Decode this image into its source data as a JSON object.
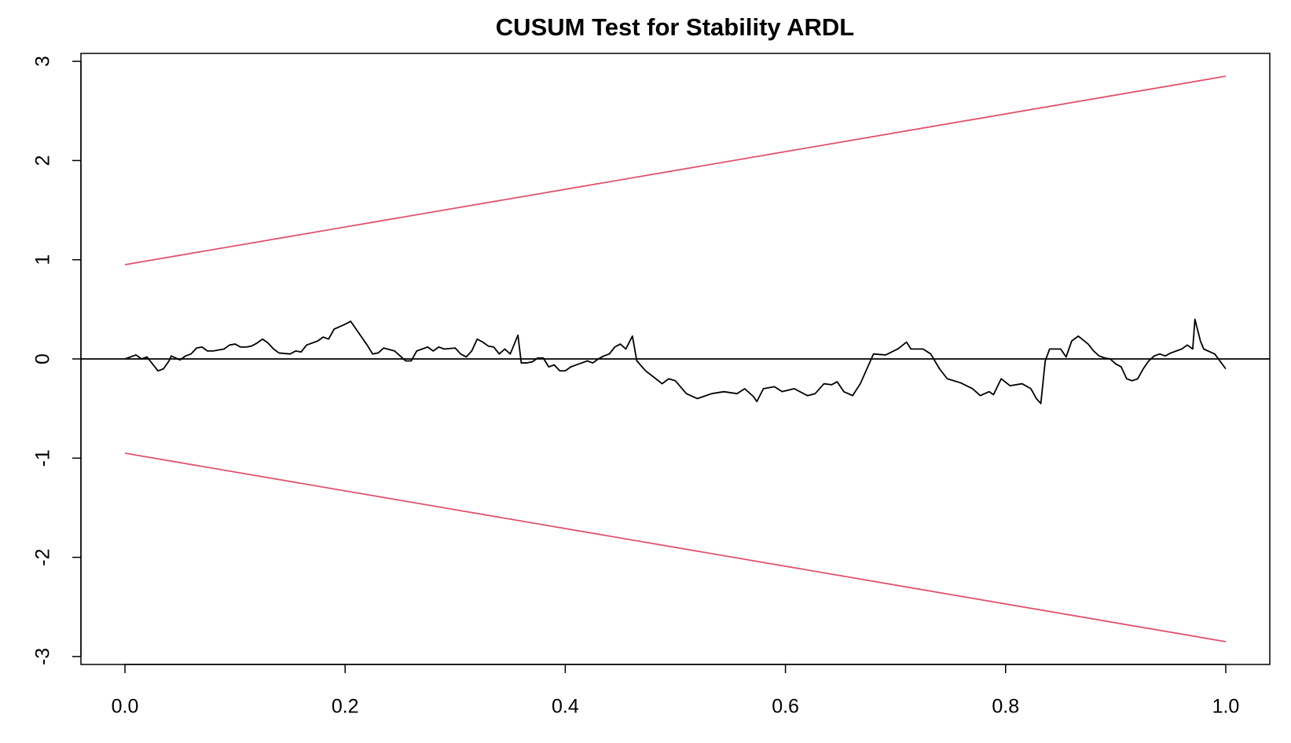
{
  "chart_data": {
    "type": "line",
    "title": "CUSUM Test for Stability ARDL",
    "xlim": [
      -0.04,
      1.04
    ],
    "ylim": [
      -3.08,
      3.08
    ],
    "xticks": [
      {
        "value": 0,
        "label": "0.0"
      },
      0.2,
      0.4,
      0.6,
      0.8,
      {
        "value": 1,
        "label": "1.0"
      }
    ],
    "yticks": [
      -3,
      -2,
      -1,
      0,
      1,
      2,
      3
    ],
    "hline": 0,
    "hline_color": "#000000",
    "series": [
      {
        "color": "#000000",
        "x": [
          0,
          0.01,
          0.015,
          0.02,
          0.03,
          0.035,
          0.04,
          0.042,
          0.05,
          0.055,
          0.06,
          0.065,
          0.07,
          0.075,
          0.08,
          0.09,
          0.095,
          0.1,
          0.105,
          0.11,
          0.115,
          0.12,
          0.125,
          0.13,
          0.135,
          0.14,
          0.15,
          0.155,
          0.16,
          0.165,
          0.175,
          0.18,
          0.185,
          0.19,
          0.2,
          0.205,
          0.21,
          0.215,
          0.22,
          0.225,
          0.23,
          0.235,
          0.245,
          0.25,
          0.255,
          0.26,
          0.265,
          0.27,
          0.275,
          0.28,
          0.285,
          0.29,
          0.3,
          0.305,
          0.31,
          0.315,
          0.32,
          0.325,
          0.33,
          0.335,
          0.34,
          0.345,
          0.35,
          0.357,
          0.36,
          0.365,
          0.37,
          0.375,
          0.38,
          0.385,
          0.39,
          0.395,
          0.4,
          0.405,
          0.41,
          0.415,
          0.42,
          0.425,
          0.43,
          0.435,
          0.44,
          0.445,
          0.45,
          0.455,
          0.461,
          0.465,
          0.473,
          0.48,
          0.488,
          0.494,
          0.5,
          0.51,
          0.52,
          0.533,
          0.544,
          0.556,
          0.563,
          0.571,
          0.574,
          0.58,
          0.59,
          0.597,
          0.608,
          0.62,
          0.627,
          0.635,
          0.642,
          0.647,
          0.653,
          0.661,
          0.668,
          0.68,
          0.691,
          0.702,
          0.71,
          0.714,
          0.725,
          0.732,
          0.74,
          0.747,
          0.759,
          0.77,
          0.777,
          0.785,
          0.789,
          0.796,
          0.804,
          0.815,
          0.823,
          0.828,
          0.832,
          0.836,
          0.84,
          0.85,
          0.855,
          0.86,
          0.866,
          0.875,
          0.88,
          0.885,
          0.89,
          0.895,
          0.9,
          0.905,
          0.91,
          0.915,
          0.92,
          0.925,
          0.93,
          0.935,
          0.94,
          0.945,
          0.95,
          0.96,
          0.965,
          0.97,
          0.972,
          0.977,
          0.98,
          0.99,
          1
        ],
        "values": [
          0,
          0.04,
          0,
          0.02,
          -0.12,
          -0.1,
          -0.02,
          0.03,
          -0.01,
          0.03,
          0.05,
          0.11,
          0.12,
          0.08,
          0.08,
          0.1,
          0.14,
          0.15,
          0.12,
          0.12,
          0.13,
          0.16,
          0.2,
          0.16,
          0.1,
          0.06,
          0.05,
          0.08,
          0.07,
          0.14,
          0.18,
          0.22,
          0.2,
          0.3,
          0.35,
          0.38,
          0.3,
          0.22,
          0.14,
          0.05,
          0.06,
          0.11,
          0.08,
          0.03,
          -0.02,
          -0.02,
          0.08,
          0.1,
          0.12,
          0.08,
          0.12,
          0.1,
          0.11,
          0.05,
          0.02,
          0.08,
          0.2,
          0.17,
          0.13,
          0.12,
          0.05,
          0.1,
          0.05,
          0.24,
          -0.04,
          -0.04,
          -0.03,
          0.01,
          0.01,
          -0.08,
          -0.06,
          -0.12,
          -0.12,
          -0.08,
          -0.06,
          -0.04,
          -0.02,
          -0.04,
          0,
          0.03,
          0.05,
          0.12,
          0.15,
          0.1,
          0.23,
          -0.02,
          -0.12,
          -0.18,
          -0.25,
          -0.2,
          -0.22,
          -0.35,
          -0.4,
          -0.35,
          -0.33,
          -0.35,
          -0.3,
          -0.38,
          -0.43,
          -0.3,
          -0.28,
          -0.33,
          -0.3,
          -0.37,
          -0.35,
          -0.25,
          -0.26,
          -0.23,
          -0.33,
          -0.37,
          -0.25,
          0.05,
          0.04,
          0.1,
          0.17,
          0.1,
          0.1,
          0.05,
          -0.1,
          -0.2,
          -0.24,
          -0.3,
          -0.37,
          -0.33,
          -0.36,
          -0.2,
          -0.27,
          -0.25,
          -0.3,
          -0.4,
          -0.45,
          -0.02,
          0.1,
          0.1,
          0.02,
          0.18,
          0.23,
          0.15,
          0.08,
          0.03,
          0.01,
          0,
          -0.05,
          -0.08,
          -0.2,
          -0.22,
          -0.2,
          -0.1,
          -0.02,
          0.03,
          0.05,
          0.03,
          0.06,
          0.1,
          0.14,
          0.1,
          0.4,
          0.18,
          0.1,
          0.05,
          -0.1
        ]
      },
      {
        "color": "#DF536B",
        "x": [
          0,
          1
        ],
        "values": [
          0.95,
          2.85
        ]
      },
      {
        "color": "#DF536B",
        "x": [
          0,
          1
        ],
        "values": [
          -0.95,
          -2.85
        ]
      }
    ]
  }
}
